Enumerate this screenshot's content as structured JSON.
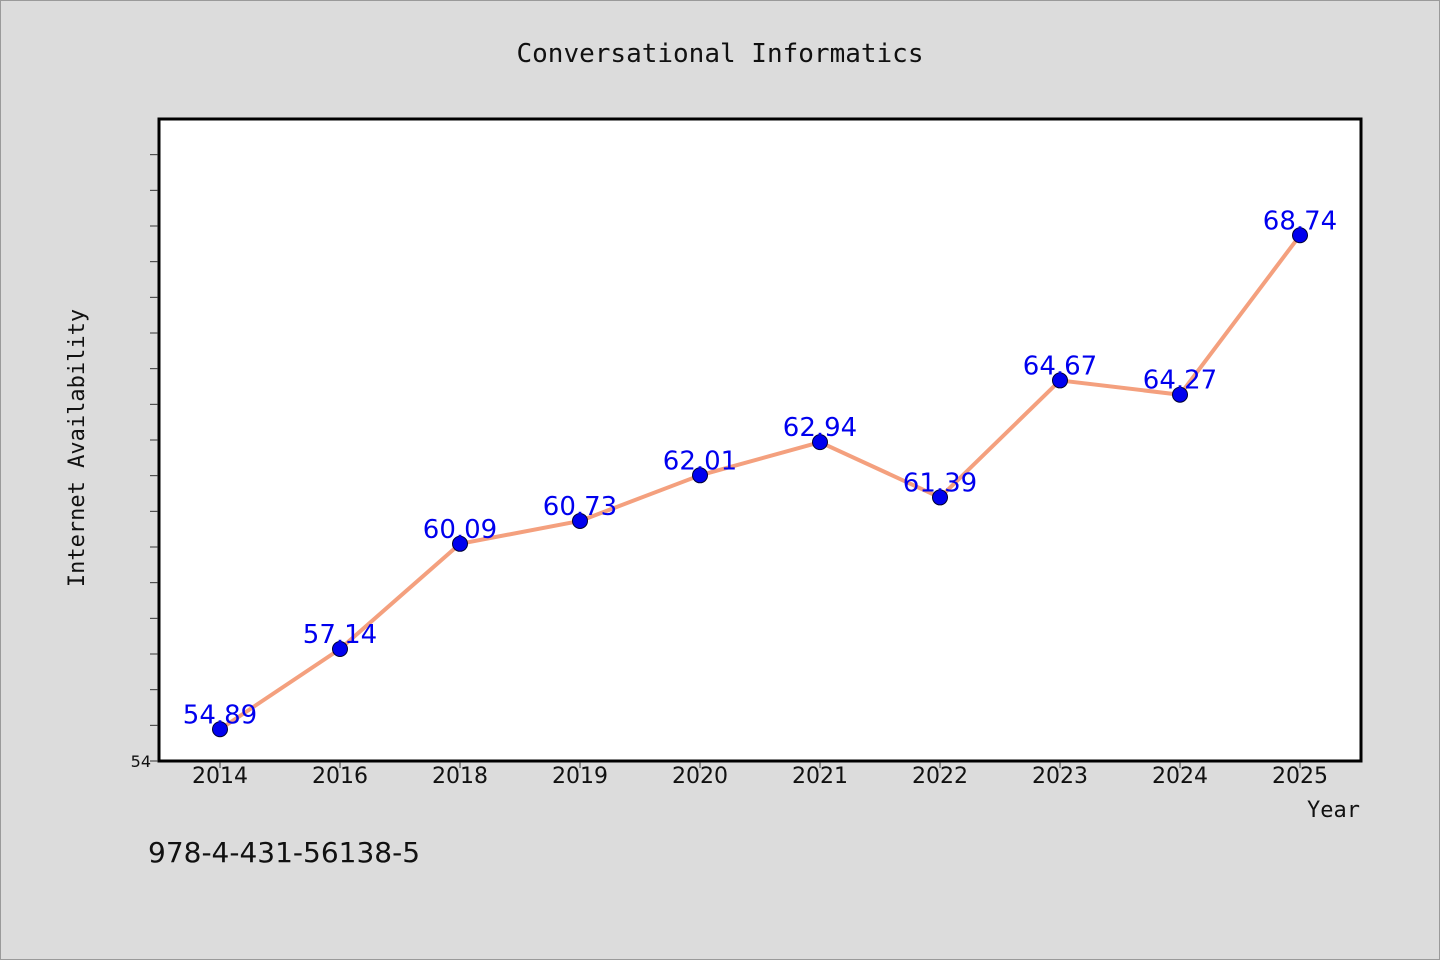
{
  "chart_data": {
    "type": "line",
    "title": "Conversational Informatics",
    "xlabel": "Year",
    "ylabel": "Internet Availability",
    "categories": [
      "2014",
      "2016",
      "2018",
      "2019",
      "2020",
      "2021",
      "2022",
      "2023",
      "2024",
      "2025"
    ],
    "series": [
      {
        "values": [
          54.89,
          57.14,
          60.09,
          60.73,
          62.01,
          62.94,
          61.39,
          64.67,
          64.27,
          68.74
        ],
        "labels": [
          "54.89",
          "57.14",
          "60.09",
          "60.73",
          "62.01",
          "62.94",
          "61.39",
          "64.67",
          "64.27",
          "68.74"
        ],
        "line_color": "#f4a07e",
        "marker_color": "#0000ee"
      }
    ],
    "ylim": [
      54,
      72
    ],
    "y_tick_labels": [
      "54"
    ],
    "grid": false,
    "legend": "none"
  },
  "footnote": "978-4-431-56138-5",
  "colors": {
    "background": "#dcdcdc",
    "plot_background": "#ffffff",
    "data_label": "#0000ee"
  }
}
